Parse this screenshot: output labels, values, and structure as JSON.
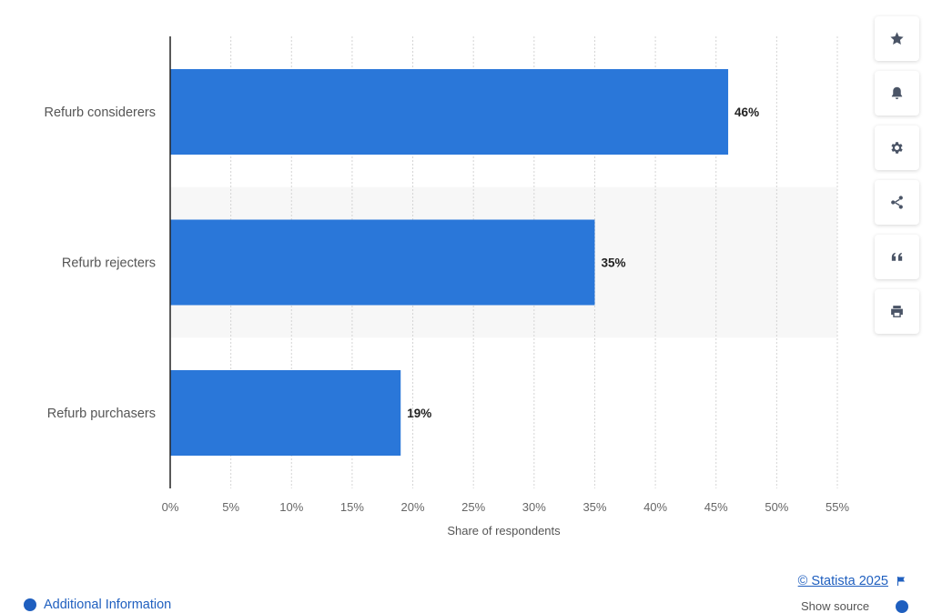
{
  "chart_data": {
    "type": "bar",
    "orientation": "horizontal",
    "categories": [
      "Refurb considerers",
      "Refurb rejecters",
      "Refurb purchasers"
    ],
    "values": [
      46,
      35,
      19
    ],
    "value_labels": [
      "46%",
      "35%",
      "19%"
    ],
    "xlabel": "Share of respondents",
    "ylabel": "",
    "xlim": [
      0,
      55
    ],
    "x_ticks": [
      0,
      5,
      10,
      15,
      20,
      25,
      30,
      35,
      40,
      45,
      50,
      55
    ],
    "x_tick_labels": [
      "0%",
      "5%",
      "10%",
      "15%",
      "20%",
      "25%",
      "30%",
      "35%",
      "40%",
      "45%",
      "50%",
      "55%"
    ],
    "grid": "vertical dashed",
    "bar_color": "#2a77d9"
  },
  "toolbar": {
    "items": [
      {
        "name": "star-icon",
        "label": "Favorite"
      },
      {
        "name": "bell-icon",
        "label": "Notifications"
      },
      {
        "name": "gear-icon",
        "label": "Settings"
      },
      {
        "name": "share-icon",
        "label": "Share"
      },
      {
        "name": "quote-icon",
        "label": "Cite"
      },
      {
        "name": "print-icon",
        "label": "Print"
      }
    ]
  },
  "footer": {
    "credit": "© Statista 2025",
    "additional_info": "Additional Information",
    "show_source": "Show source"
  },
  "colors": {
    "accent": "#1f5fbf",
    "band": "#f7f7f7"
  }
}
